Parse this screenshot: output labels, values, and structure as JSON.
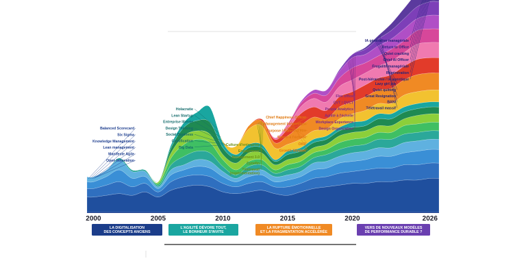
{
  "chart_data": {
    "type": "area",
    "title": "",
    "xlabel": "",
    "ylabel": "",
    "x_ticks": [
      "2000",
      "2005",
      "2010",
      "2015",
      "2020",
      "2026"
    ],
    "xlim": [
      1999.5,
      2026.7
    ],
    "ylim": [
      0,
      10
    ],
    "legend": "none",
    "grid": false,
    "x": [
      1999.5,
      2000,
      2001,
      2002,
      2003,
      2004,
      2005,
      2006,
      2007,
      2008,
      2009,
      2010,
      2011,
      2012,
      2013,
      2014,
      2015,
      2016,
      2017,
      2018,
      2019,
      2020,
      2021,
      2022,
      2023,
      2024,
      2025,
      2026,
      2026.7
    ],
    "series": [
      {
        "color": "#1f4f9e",
        "values": [
          0.9,
          0.9,
          1.0,
          1.1,
          1.0,
          1.2,
          0.9,
          1.3,
          1.5,
          1.6,
          1.5,
          1.2,
          1.1,
          1.2,
          1.3,
          1.1,
          1.0,
          1.2,
          1.4,
          1.5,
          1.6,
          1.7,
          1.7,
          1.8,
          1.8,
          1.9,
          1.9,
          2.0,
          2.0
        ]
      },
      {
        "color": "#2f6fbf",
        "values": [
          0.5,
          0.5,
          0.6,
          0.7,
          0.5,
          0.5,
          0.3,
          0.5,
          0.6,
          0.6,
          0.6,
          0.5,
          0.4,
          0.5,
          0.5,
          0.4,
          0.5,
          0.5,
          0.6,
          0.6,
          0.7,
          0.7,
          0.8,
          0.8,
          0.8,
          0.9,
          0.9,
          0.9,
          0.9
        ]
      },
      {
        "color": "#3a8fd6",
        "values": [
          0.4,
          0.4,
          0.5,
          0.7,
          0.5,
          0.4,
          0.2,
          0.4,
          0.4,
          0.5,
          0.5,
          0.4,
          0.3,
          0.4,
          0.4,
          0.3,
          0.4,
          0.4,
          0.5,
          0.5,
          0.6,
          0.6,
          0.6,
          0.7,
          0.7,
          0.7,
          0.8,
          0.8,
          0.8
        ]
      },
      {
        "color": "#5fb1e0",
        "values": [
          0.3,
          0.3,
          0.4,
          0.6,
          0.4,
          0.3,
          0.1,
          0.3,
          0.3,
          0.4,
          0.4,
          0.3,
          0.2,
          0.3,
          0.3,
          0.3,
          0.3,
          0.3,
          0.4,
          0.4,
          0.4,
          0.5,
          0.5,
          0.5,
          0.5,
          0.6,
          0.6,
          0.6,
          0.6
        ]
      },
      {
        "color": "#2ba89a",
        "values": [
          0.0,
          0.0,
          0.0,
          0.1,
          0.1,
          0.1,
          0.1,
          0.3,
          0.5,
          0.5,
          0.5,
          0.3,
          0.2,
          0.3,
          0.3,
          0.2,
          0.3,
          0.3,
          0.3,
          0.4,
          0.4,
          0.4,
          0.4,
          0.5,
          0.5,
          0.5,
          0.5,
          0.5,
          0.5
        ]
      },
      {
        "color": "#3fbf63",
        "values": [
          0.0,
          0.0,
          0.0,
          0.0,
          0.0,
          0.0,
          0.1,
          0.4,
          0.7,
          0.7,
          0.6,
          0.4,
          0.3,
          0.3,
          0.3,
          0.2,
          0.3,
          0.3,
          0.3,
          0.3,
          0.4,
          0.4,
          0.4,
          0.4,
          0.4,
          0.5,
          0.5,
          0.5,
          0.5
        ]
      },
      {
        "color": "#8ccf3a",
        "values": [
          0.0,
          0.0,
          0.0,
          0.0,
          0.0,
          0.0,
          0.1,
          0.3,
          0.5,
          0.5,
          0.5,
          0.3,
          0.4,
          0.5,
          0.4,
          0.3,
          0.3,
          0.3,
          0.3,
          0.3,
          0.4,
          0.4,
          0.4,
          0.4,
          0.4,
          0.4,
          0.5,
          0.5,
          0.5
        ]
      },
      {
        "color": "#1f8a52",
        "values": [
          0.0,
          0.0,
          0.0,
          0.0,
          0.0,
          0.0,
          0.0,
          0.3,
          0.5,
          0.6,
          0.7,
          0.4,
          0.3,
          0.3,
          0.3,
          0.2,
          0.3,
          0.3,
          0.3,
          0.3,
          0.3,
          0.3,
          0.3,
          0.4,
          0.4,
          0.4,
          0.4,
          0.4,
          0.4
        ]
      },
      {
        "color": "#19a6a0",
        "values": [
          0.0,
          0.0,
          0.0,
          0.0,
          0.0,
          0.0,
          0.0,
          0.2,
          0.3,
          0.5,
          0.9,
          0.3,
          0.2,
          0.2,
          0.2,
          0.1,
          0.2,
          0.2,
          0.2,
          0.2,
          0.2,
          0.3,
          0.3,
          0.3,
          0.3,
          0.3,
          0.3,
          0.3,
          0.3
        ]
      },
      {
        "color": "#f2c230",
        "values": [
          0.0,
          0.0,
          0.0,
          0.0,
          0.0,
          0.0,
          0.0,
          0.0,
          0.0,
          0.0,
          0.0,
          0.1,
          0.5,
          0.9,
          1.1,
          0.7,
          0.4,
          0.5,
          0.5,
          0.4,
          0.5,
          0.5,
          0.6,
          0.6,
          0.6,
          0.7,
          0.7,
          0.7,
          0.7
        ]
      },
      {
        "color": "#f08a24",
        "values": [
          0.0,
          0.0,
          0.0,
          0.0,
          0.0,
          0.0,
          0.0,
          0.0,
          0.0,
          0.0,
          0.0,
          0.0,
          0.0,
          0.2,
          0.3,
          0.3,
          0.5,
          0.8,
          0.8,
          0.6,
          0.7,
          0.7,
          0.8,
          0.8,
          0.9,
          0.9,
          1.0,
          1.0,
          1.0
        ]
      },
      {
        "color": "#e23b2a",
        "values": [
          0.0,
          0.0,
          0.0,
          0.0,
          0.0,
          0.0,
          0.0,
          0.0,
          0.0,
          0.0,
          0.0,
          0.0,
          0.0,
          0.0,
          0.1,
          0.2,
          0.4,
          0.7,
          0.6,
          0.5,
          0.6,
          0.6,
          0.7,
          0.7,
          0.8,
          0.8,
          0.9,
          0.9,
          0.9
        ]
      },
      {
        "color": "#f07ab0",
        "values": [
          0.0,
          0.0,
          0.0,
          0.0,
          0.0,
          0.0,
          0.0,
          0.0,
          0.0,
          0.0,
          0.0,
          0.0,
          0.0,
          0.0,
          0.0,
          0.1,
          0.2,
          0.4,
          0.5,
          0.5,
          0.6,
          0.7,
          0.7,
          0.7,
          0.8,
          0.8,
          0.9,
          0.9,
          0.9
        ]
      },
      {
        "color": "#d7479a",
        "values": [
          0.0,
          0.0,
          0.0,
          0.0,
          0.0,
          0.0,
          0.0,
          0.0,
          0.0,
          0.0,
          0.0,
          0.0,
          0.0,
          0.0,
          0.0,
          0.0,
          0.1,
          0.2,
          0.3,
          0.4,
          0.5,
          0.7,
          0.6,
          0.6,
          0.7,
          0.7,
          0.8,
          0.8,
          0.8
        ]
      },
      {
        "color": "#b04fc6",
        "values": [
          0.0,
          0.0,
          0.0,
          0.0,
          0.0,
          0.0,
          0.0,
          0.0,
          0.0,
          0.0,
          0.0,
          0.0,
          0.0,
          0.0,
          0.0,
          0.0,
          0.0,
          0.1,
          0.2,
          0.3,
          0.4,
          0.6,
          0.5,
          0.6,
          0.6,
          0.7,
          0.7,
          0.8,
          0.8
        ]
      },
      {
        "color": "#7d3fb8",
        "values": [
          0.0,
          0.0,
          0.0,
          0.0,
          0.0,
          0.0,
          0.0,
          0.0,
          0.0,
          0.0,
          0.0,
          0.0,
          0.0,
          0.0,
          0.0,
          0.0,
          0.0,
          0.0,
          0.0,
          0.0,
          0.1,
          0.2,
          0.3,
          0.4,
          0.5,
          0.6,
          0.7,
          0.8,
          0.8
        ]
      },
      {
        "color": "#5b3a9e",
        "values": [
          0.0,
          0.0,
          0.0,
          0.0,
          0.0,
          0.0,
          0.0,
          0.0,
          0.0,
          0.0,
          0.0,
          0.0,
          0.0,
          0.0,
          0.0,
          0.0,
          0.0,
          0.0,
          0.0,
          0.0,
          0.0,
          0.0,
          0.1,
          0.2,
          0.4,
          0.6,
          0.8,
          1.0,
          1.2
        ]
      }
    ],
    "annotations": {
      "2000": {
        "color": "#1f3f8f",
        "labels": [
          "Balanced Scorecard",
          "Six Sigma",
          "Knowledge Management",
          "Lean management",
          "Manifeste Agile",
          "Open Innovation"
        ]
      },
      "2010": {
        "color": "#136b6b",
        "labels": [
          "Holacratie",
          "Lean Startup",
          "Entreprise libérée",
          "Design Thinking",
          "Social Business",
          "Gamification",
          "Big Data"
        ]
      },
      "2013": {
        "color": "#6c8f15",
        "labels": [
          "Culture d'entreprise",
          "Engagement",
          "Management 3.0",
          "Cynefin",
          "Télétravail",
          "(expérimentation)"
        ]
      },
      "2015": {
        "color": "#e07a12",
        "labels": [
          "Chief Happiness Officer",
          "Management bienveillant",
          "Purpose / Raison d'être",
          "Scrum à l'échelle",
          "OKR",
          "Growth Mindset"
        ]
      },
      "2020": {
        "color": "#7a2a8a",
        "labels": [
          "Flex office",
          "QVT / QVCT",
          "People Analytics",
          "Agilité à l'échelle",
          "Workplace Experience",
          "Design Organization"
        ]
      },
      "2022": {
        "color": "#25237a",
        "labels": [
          "Lazy girl job",
          "Quiet quitting",
          "Great Resignation",
          "BANI",
          "Télétravail massif"
        ]
      },
      "2026": {
        "color": "#25237a",
        "labels": [
          "IA générative managériale",
          "Return to Office",
          "Quiet cracking",
          "Chief AI Officer",
          "Frugalité managériale",
          "Régénération",
          "Post-hiérarchie / IA agentique"
        ]
      }
    },
    "periods": [
      {
        "color": "#1b3d8a",
        "lines": [
          "LA DIGITALISATION",
          "DES CONCEPTS ANCIENS"
        ]
      },
      {
        "color": "#1aa6a0",
        "lines": [
          "L'AGILITÉ DÉVORE TOUT,",
          "LE BONHEUR S'INVITE"
        ]
      },
      {
        "color": "#f08a24",
        "lines": [
          "LA RUPTURE ÉMOTIONNELLE",
          "ET LA FRAGMENTATION ACCÉLÉRÉE"
        ]
      },
      {
        "color": "#6a3fb0",
        "lines": [
          "VERS DE NOUVEAUX MODÈLES",
          "DE PERFORMANCE DURABLE ?"
        ]
      }
    ]
  }
}
